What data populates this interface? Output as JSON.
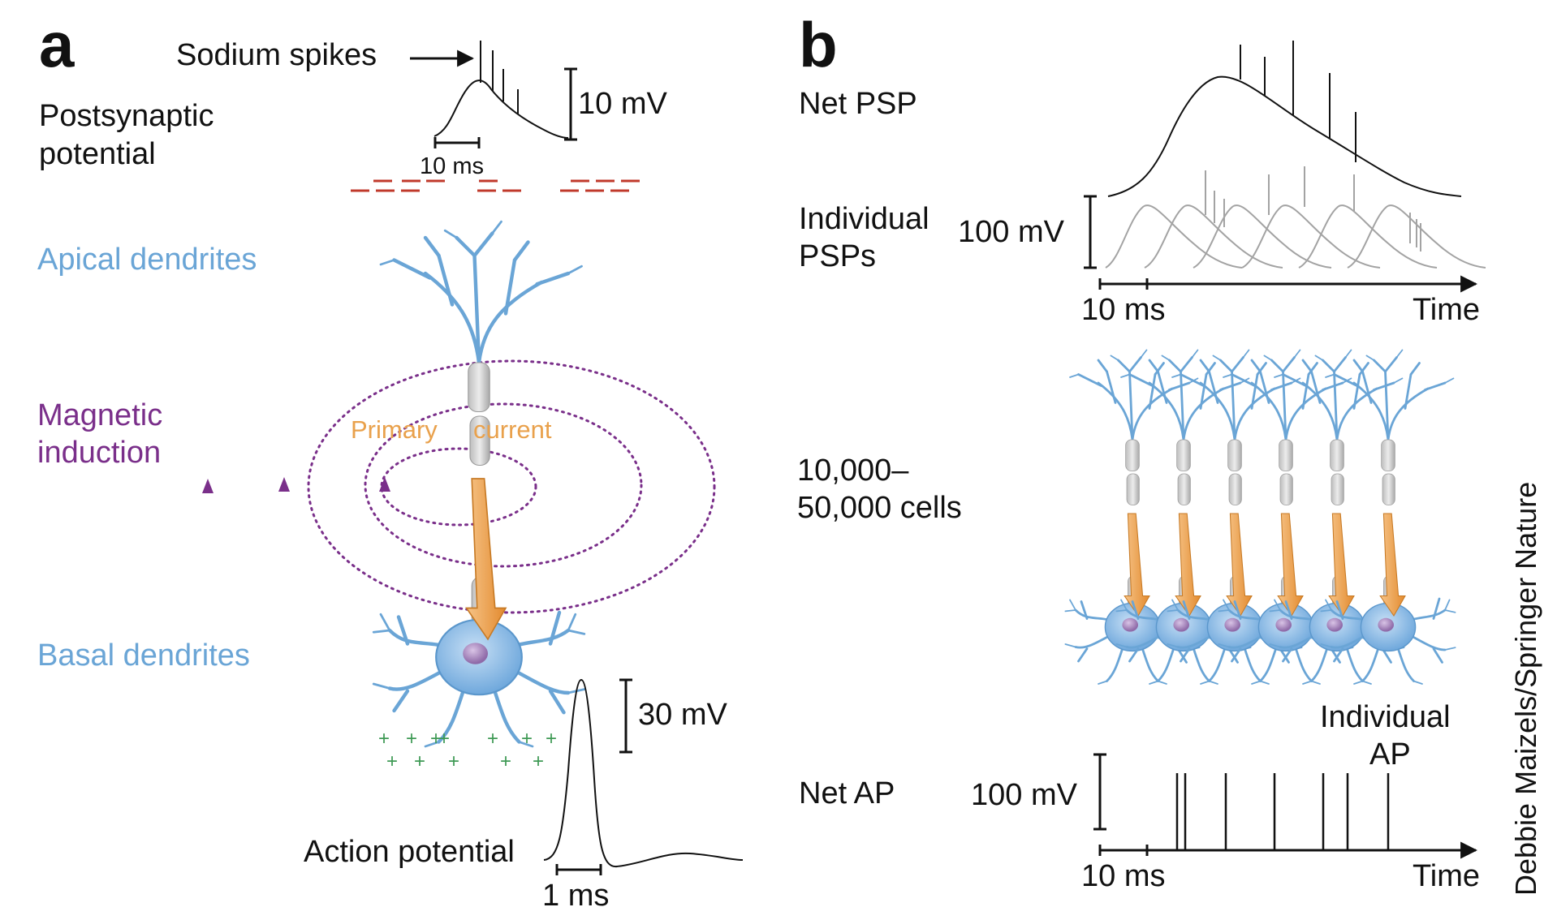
{
  "panel_a": {
    "letter": "a",
    "sodium_spikes": "Sodium spikes",
    "postsynaptic_line1": "Postsynaptic",
    "postsynaptic_line2": "potential",
    "psp_scale_mv": "10 mV",
    "psp_scale_ms": "10 ms",
    "apical": "Apical dendrites",
    "magnetic_line1": "Magnetic",
    "magnetic_line2": "induction",
    "primary": "Primary",
    "current": "current",
    "basal": "Basal dendrites",
    "ap_scale_mv": "30 mV",
    "action_potential": "Action potential",
    "ap_scale_ms": "1 ms"
  },
  "panel_b": {
    "letter": "b",
    "net_psp": "Net PSP",
    "individual_line1": "Individual",
    "individual_line2": "PSPs",
    "psp_scale_mv": "100 mV",
    "psp_scale_ms": "10 ms",
    "time_top": "Time",
    "cells_line1": "10,000–",
    "cells_line2": "50,000 cells",
    "indiv_ap_line1": "Individual",
    "indiv_ap_line2": "AP",
    "net_ap": "Net AP",
    "ap_scale_mv": "100 mV",
    "ap_scale_ms": "10 ms",
    "time_bottom": "Time"
  },
  "credit": "Debbie Maizels/Springer Nature",
  "colors": {
    "dendrite_blue": "#6aa5d6",
    "magnetic_purple": "#7a2f8a",
    "current_orange": "#e9a14c",
    "negative_red": "#c0392b",
    "positive_green": "#3f9a55"
  }
}
